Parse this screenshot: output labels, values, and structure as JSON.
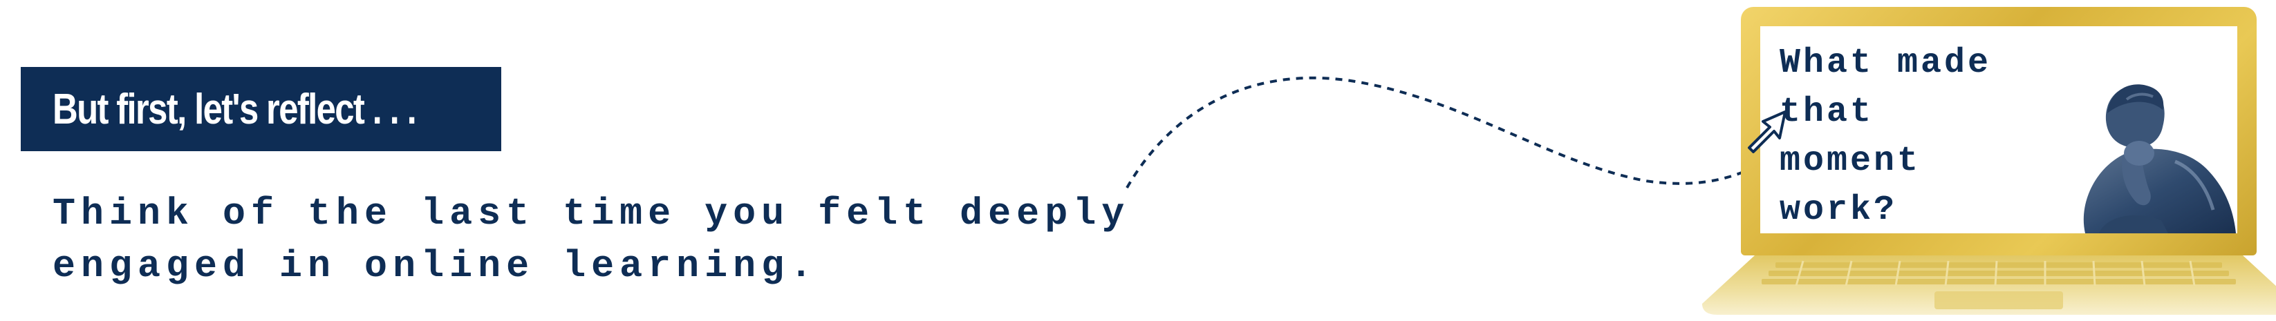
{
  "banner": {
    "title": "But first, let's reflect . . ."
  },
  "prompt": {
    "line1": "Think of the last time you felt deeply",
    "line2": "engaged in online learning."
  },
  "laptop": {
    "screen_line1": "What made",
    "screen_line2": "that",
    "screen_line3": "moment",
    "screen_line4": "work?"
  },
  "colors": {
    "navy": "#0e2d55",
    "gold": "#d8b23a",
    "white": "#ffffff"
  }
}
